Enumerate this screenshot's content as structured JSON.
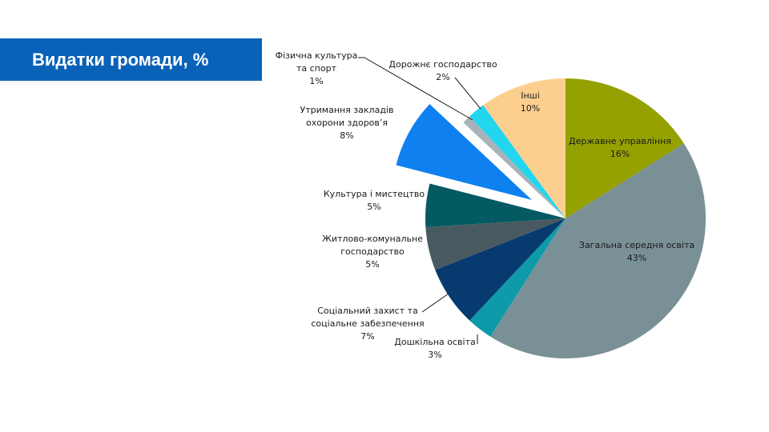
{
  "slide": {
    "title": "Видатки громади,  %"
  },
  "chart_data": {
    "type": "pie",
    "unit": "%",
    "start_angle_deg": 0,
    "direction": "clockwise",
    "slices": [
      {
        "label": "Державне  управління",
        "label_lines": [
          "Державне  управління"
        ],
        "value": 16,
        "value_text": "16%",
        "color": "#94a100",
        "exploded": false,
        "label_inside": true
      },
      {
        "label": "Загальна середня освіта",
        "label_lines": [
          "Загальна середня освіта"
        ],
        "value": 43,
        "value_text": "43%",
        "color": "#7a9097",
        "exploded": false,
        "label_inside": true
      },
      {
        "label": "Дошкільна освіта",
        "label_lines": [
          "Дошкільна освіта"
        ],
        "value": 3,
        "value_text": "3%",
        "color": "#0f9aaa",
        "exploded": false,
        "label_inside": false
      },
      {
        "label": "Соціальний захист та соціальне забезпечення",
        "label_lines": [
          "Соціальний захист та",
          "соціальне забезпечення"
        ],
        "value": 7,
        "value_text": "7%",
        "color": "#073a6f",
        "exploded": false,
        "label_inside": false
      },
      {
        "label": "Житлово-комунальне господарство",
        "label_lines": [
          "Житлово-комунальне",
          "господарство"
        ],
        "value": 5,
        "value_text": "5%",
        "color": "#485a60",
        "exploded": false,
        "label_inside": false
      },
      {
        "label": "Культура і мистецтво",
        "label_lines": [
          "Культура і мистецтво"
        ],
        "value": 5,
        "value_text": "5%",
        "color": "#045a62",
        "exploded": false,
        "label_inside": false
      },
      {
        "label": "Утримання закладів охорони здоров’я",
        "label_lines": [
          "Утримання закладів",
          "охорони здоров’я"
        ],
        "value": 8,
        "value_text": "8%",
        "color": "#0f80f0",
        "exploded": true,
        "label_inside": false
      },
      {
        "label": "Фізична культура та спорт",
        "label_lines": [
          "Фізична культура",
          "та спорт"
        ],
        "value": 1,
        "value_text": "1%",
        "color": "#a8b2b8",
        "exploded": false,
        "label_inside": false
      },
      {
        "label": "Дорожнє господарство",
        "label_lines": [
          "Дорожнє господарство"
        ],
        "value": 2,
        "value_text": "2%",
        "color": "#22d6ee",
        "exploded": false,
        "label_inside": false
      },
      {
        "label": "Інші",
        "label_lines": [
          "Інші"
        ],
        "value": 10,
        "value_text": "10%",
        "color": "#fdcf8f",
        "exploded": false,
        "label_inside": true
      }
    ]
  }
}
